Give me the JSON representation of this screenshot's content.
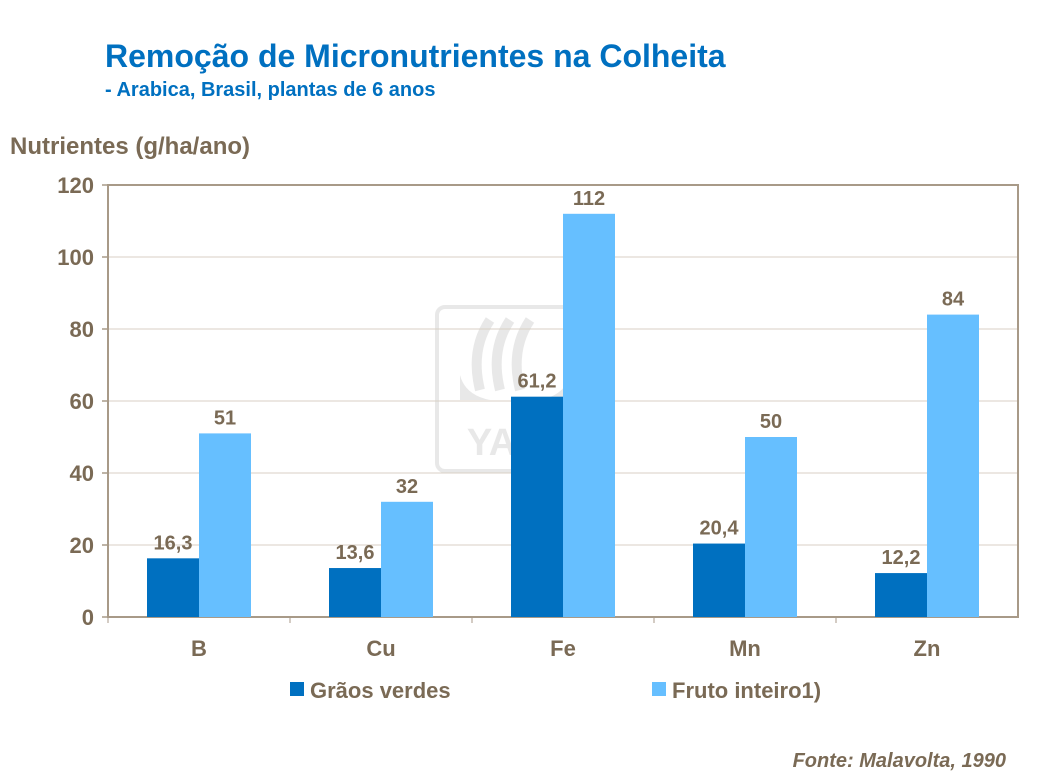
{
  "chart_data": {
    "type": "bar",
    "title": "Remoção de Micronutrientes na Colheita",
    "subtitle": "- Arabica, Brasil, plantas de 6 anos",
    "ylabel": "Nutrientes (g/ha/ano)",
    "xlabel": "",
    "ylim": [
      0,
      120
    ],
    "yticks": [
      0,
      20,
      40,
      60,
      80,
      100,
      120
    ],
    "grid": true,
    "legend_position": "bottom",
    "categories": [
      "B",
      "Cu",
      "Fe",
      "Mn",
      "Zn"
    ],
    "series": [
      {
        "name": "Grãos verdes",
        "color": "#0070C0",
        "values": [
          16.3,
          13.6,
          61.2,
          20.4,
          12.2
        ],
        "labels": [
          "16,3",
          "13,6",
          "61,2",
          "20,4",
          "12,2"
        ]
      },
      {
        "name": "Fruto inteiro1)",
        "color": "#66BFFF",
        "values": [
          51,
          32,
          112,
          50,
          84
        ],
        "labels": [
          "51",
          "32",
          "112",
          "50",
          "84"
        ]
      }
    ],
    "source": "Fonte: Malavolta, 1990",
    "watermark": "YARA"
  }
}
